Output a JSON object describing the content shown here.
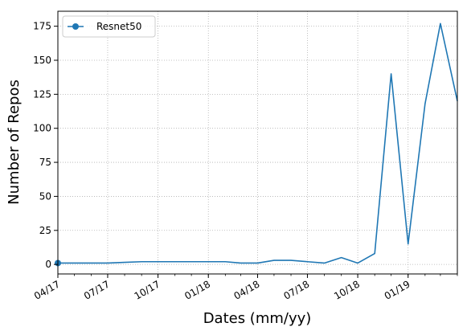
{
  "chart_data": {
    "type": "line",
    "title": "",
    "xlabel": "Dates (mm/yy)",
    "ylabel": "Number of Repos",
    "x_ticks": [
      "04/17",
      "07/17",
      "10/17",
      "01/18",
      "04/18",
      "07/18",
      "10/18",
      "01/19"
    ],
    "y_ticks": [
      "0",
      "25",
      "50",
      "75",
      "100",
      "125",
      "150",
      "175"
    ],
    "ylim": [
      -7,
      186
    ],
    "xlim": [
      "2017-04-01",
      "2019-04-01"
    ],
    "grid": true,
    "legend": "top-left",
    "series": [
      {
        "name": "Resnet50",
        "color": "#1f77b4",
        "x": [
          "2017-04-01",
          "2017-05-01",
          "2017-06-01",
          "2017-07-01",
          "2017-08-01",
          "2017-09-01",
          "2017-10-01",
          "2017-11-01",
          "2017-12-01",
          "2018-01-01",
          "2018-02-01",
          "2018-03-01",
          "2018-04-01",
          "2018-05-01",
          "2018-06-01",
          "2018-07-01",
          "2018-08-01",
          "2018-09-01",
          "2018-10-01",
          "2018-11-01",
          "2018-12-01",
          "2019-01-01",
          "2019-02-01",
          "2019-03-01",
          "2019-04-01"
        ],
        "values": [
          1,
          1,
          1,
          1,
          1.5,
          2,
          2,
          2,
          2,
          2,
          2,
          1,
          1,
          3,
          3,
          2,
          1,
          5,
          1,
          8,
          140,
          15,
          118,
          177,
          120
        ]
      }
    ]
  }
}
